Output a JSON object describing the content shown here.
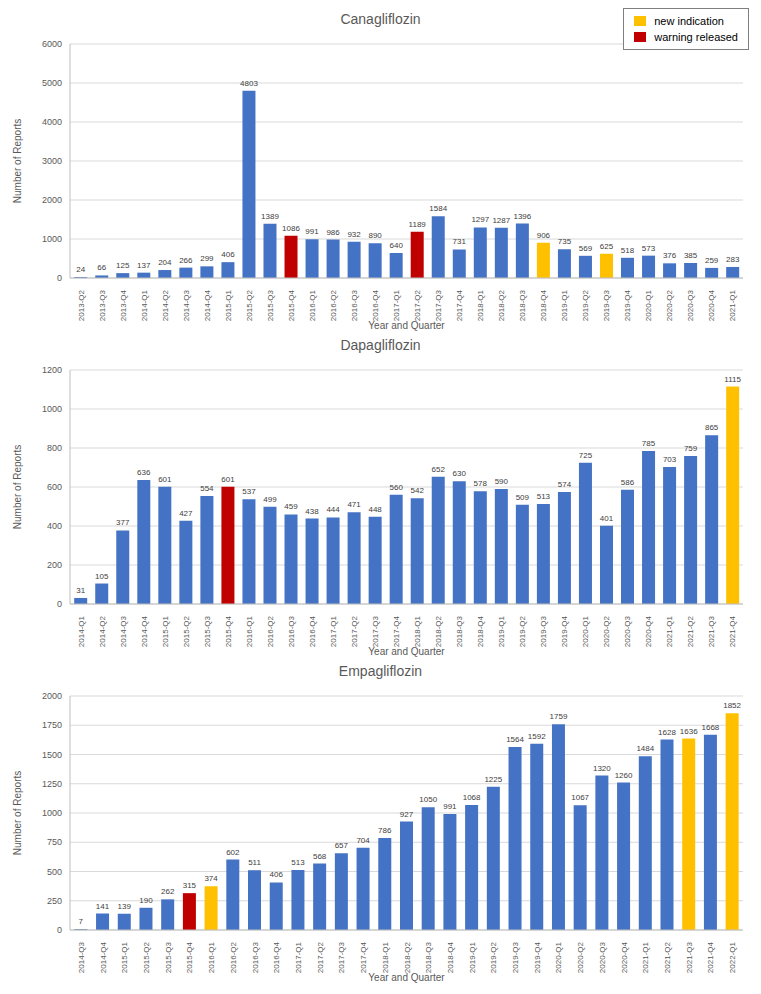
{
  "chart_data": [
    {
      "type": "bar",
      "title": "Canagliflozin",
      "x_label": "Year and Quarter",
      "y_label": "Number of Reports",
      "categories": [
        "2013-Q2",
        "2013-Q3",
        "2013-Q4",
        "2014-Q1",
        "2014-Q2",
        "2014-Q3",
        "2014-Q4",
        "2015-Q1",
        "2015-Q2",
        "2015-Q3",
        "2015-Q4",
        "2016-Q1",
        "2016-Q2",
        "2016-Q3",
        "2016-Q4",
        "2017-Q1",
        "2017-Q2",
        "2017-Q3",
        "2017-Q4",
        "2018-Q1",
        "2018-Q2",
        "2018-Q3",
        "2018-Q4",
        "2019-Q1",
        "2019-Q2",
        "2019-Q3",
        "2019-Q4",
        "2020-Q1",
        "2020-Q2",
        "2020-Q3",
        "2020-Q4",
        "2021-Q1"
      ],
      "values": [
        24,
        66,
        125,
        137,
        204,
        266,
        299,
        406,
        4803,
        1389,
        1086,
        991,
        986,
        932,
        890,
        640,
        1189,
        1584,
        731,
        1297,
        1287,
        1396,
        906,
        735,
        569,
        625,
        518,
        573,
        376,
        385,
        259,
        283
      ],
      "colors": [
        "#4472c4",
        "#4472c4",
        "#4472c4",
        "#4472c4",
        "#4472c4",
        "#4472c4",
        "#4472c4",
        "#4472c4",
        "#4472c4",
        "#4472c4",
        "#c00000",
        "#4472c4",
        "#4472c4",
        "#4472c4",
        "#4472c4",
        "#4472c4",
        "#c00000",
        "#4472c4",
        "#4472c4",
        "#4472c4",
        "#4472c4",
        "#4472c4",
        "#ffc000",
        "#4472c4",
        "#4472c4",
        "#ffc000",
        "#4472c4",
        "#4472c4",
        "#4472c4",
        "#4472c4",
        "#4472c4",
        "#4472c4"
      ],
      "ylim": [
        0,
        6000
      ],
      "yticks": [
        0,
        1000,
        2000,
        3000,
        4000,
        5000,
        6000
      ],
      "grid": true,
      "data_labels": true,
      "legend": "upper right",
      "legend_entries": [
        {
          "name": "new indication",
          "color": "#ffc000"
        },
        {
          "name": "warning released",
          "color": "#c00000"
        }
      ]
    },
    {
      "type": "bar",
      "title": "Dapagliflozin",
      "x_label": "Year and Quarter",
      "y_label": "Number of Reports",
      "categories": [
        "2014-Q1",
        "2014-Q2",
        "2014-Q3",
        "2014-Q4",
        "2015-Q1",
        "2015-Q2",
        "2015-Q3",
        "2015-Q4",
        "2016-Q1",
        "2016-Q2",
        "2016-Q3",
        "2016-Q4",
        "2017-Q1",
        "2017-Q2",
        "2017-Q3",
        "2017-Q4",
        "2018-Q1",
        "2018-Q2",
        "2018-Q3",
        "2018-Q4",
        "2019-Q1",
        "2019-Q2",
        "2019-Q3",
        "2019-Q4",
        "2020-Q1",
        "2020-Q2",
        "2020-Q3",
        "2020-Q4",
        "2021-Q1",
        "2021-Q2",
        "2021-Q3",
        "2021-Q4"
      ],
      "values": [
        31,
        105,
        377,
        636,
        601,
        427,
        554,
        601,
        537,
        499,
        459,
        438,
        444,
        471,
        448,
        560,
        542,
        652,
        630,
        578,
        590,
        509,
        513,
        574,
        725,
        401,
        586,
        785,
        703,
        759,
        865,
        1115
      ],
      "colors": [
        "#4472c4",
        "#4472c4",
        "#4472c4",
        "#4472c4",
        "#4472c4",
        "#4472c4",
        "#4472c4",
        "#c00000",
        "#4472c4",
        "#4472c4",
        "#4472c4",
        "#4472c4",
        "#4472c4",
        "#4472c4",
        "#4472c4",
        "#4472c4",
        "#4472c4",
        "#4472c4",
        "#4472c4",
        "#4472c4",
        "#4472c4",
        "#4472c4",
        "#4472c4",
        "#4472c4",
        "#4472c4",
        "#4472c4",
        "#4472c4",
        "#4472c4",
        "#4472c4",
        "#4472c4",
        "#4472c4",
        "#ffc000"
      ],
      "ylim": [
        0,
        1200
      ],
      "yticks": [
        0,
        200,
        400,
        600,
        800,
        1000,
        1200
      ],
      "grid": true,
      "data_labels": true
    },
    {
      "type": "bar",
      "title": "Empagliflozin",
      "x_label": "Year and Quarter",
      "y_label": "Number of Reports",
      "categories": [
        "2014-Q3",
        "2014-Q4",
        "2015-Q1",
        "2015-Q2",
        "2015-Q3",
        "2015-Q4",
        "2016-Q1",
        "2016-Q2",
        "2016-Q3",
        "2016-Q4",
        "2017-Q1",
        "2017-Q2",
        "2017-Q3",
        "2017-Q4",
        "2018-Q1",
        "2018-Q2",
        "2018-Q3",
        "2018-Q4",
        "2019-Q1",
        "2019-Q2",
        "2019-Q3",
        "2019-Q4",
        "2020-Q1",
        "2020-Q2",
        "2020-Q3",
        "2020-Q4",
        "2021-Q1",
        "2021-Q2",
        "2021-Q3",
        "2021-Q4",
        "2022-Q1"
      ],
      "values": [
        7,
        141,
        139,
        190,
        262,
        315,
        374,
        602,
        511,
        406,
        513,
        568,
        657,
        704,
        786,
        927,
        1050,
        991,
        1068,
        1225,
        1564,
        1592,
        1759,
        1067,
        1320,
        1260,
        1484,
        1628,
        1636,
        1668,
        1852
      ],
      "colors": [
        "#4472c4",
        "#4472c4",
        "#4472c4",
        "#4472c4",
        "#4472c4",
        "#c00000",
        "#ffc000",
        "#4472c4",
        "#4472c4",
        "#4472c4",
        "#4472c4",
        "#4472c4",
        "#4472c4",
        "#4472c4",
        "#4472c4",
        "#4472c4",
        "#4472c4",
        "#4472c4",
        "#4472c4",
        "#4472c4",
        "#4472c4",
        "#4472c4",
        "#4472c4",
        "#4472c4",
        "#4472c4",
        "#4472c4",
        "#4472c4",
        "#4472c4",
        "#ffc000",
        "#4472c4",
        "#ffc000"
      ],
      "ylim": [
        0,
        2000
      ],
      "yticks": [
        0,
        250,
        500,
        750,
        1000,
        1250,
        1500,
        1750,
        2000
      ],
      "grid": true,
      "data_labels": true
    }
  ]
}
